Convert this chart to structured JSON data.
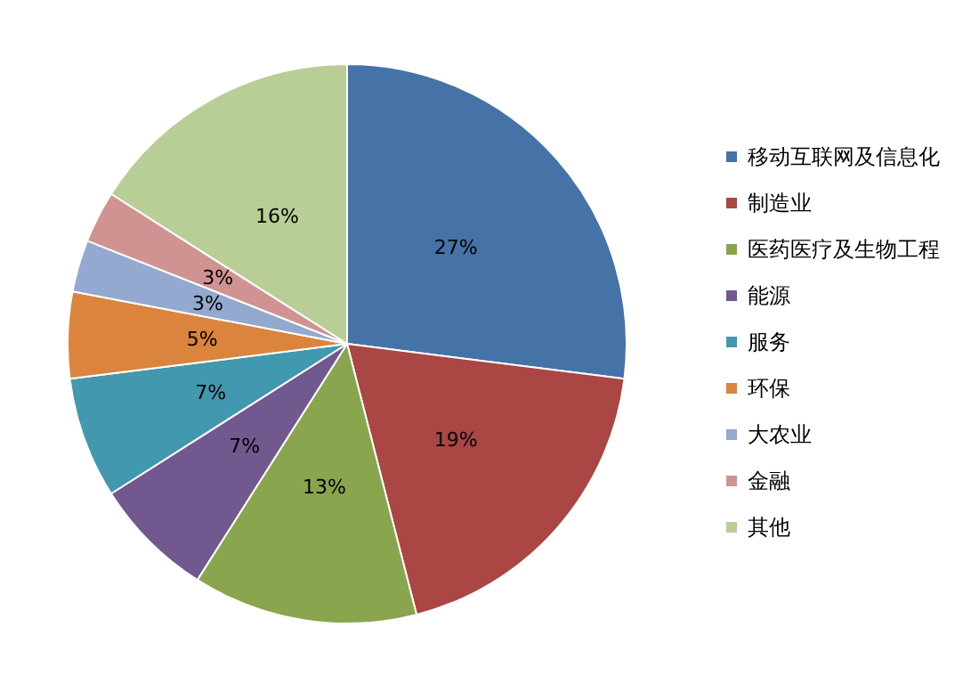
{
  "chart_data": {
    "type": "pie",
    "categories": [
      "移动互联网及信息化",
      "制造业",
      "医药医疗及生物工程",
      "能源",
      "服务",
      "环保",
      "大农业",
      "金融",
      "其他"
    ],
    "values": [
      27,
      19,
      13,
      7,
      7,
      5,
      3,
      3,
      16
    ],
    "value_labels": [
      "27%",
      "19%",
      "13%",
      "7%",
      "7%",
      "5%",
      "3%",
      "3%",
      "16%"
    ],
    "colors": [
      "#4572a7",
      "#aa4643",
      "#89a54e",
      "#71588f",
      "#4198af",
      "#db843d",
      "#93a9cf",
      "#d19392",
      "#b9cd96"
    ],
    "legend": "right"
  }
}
